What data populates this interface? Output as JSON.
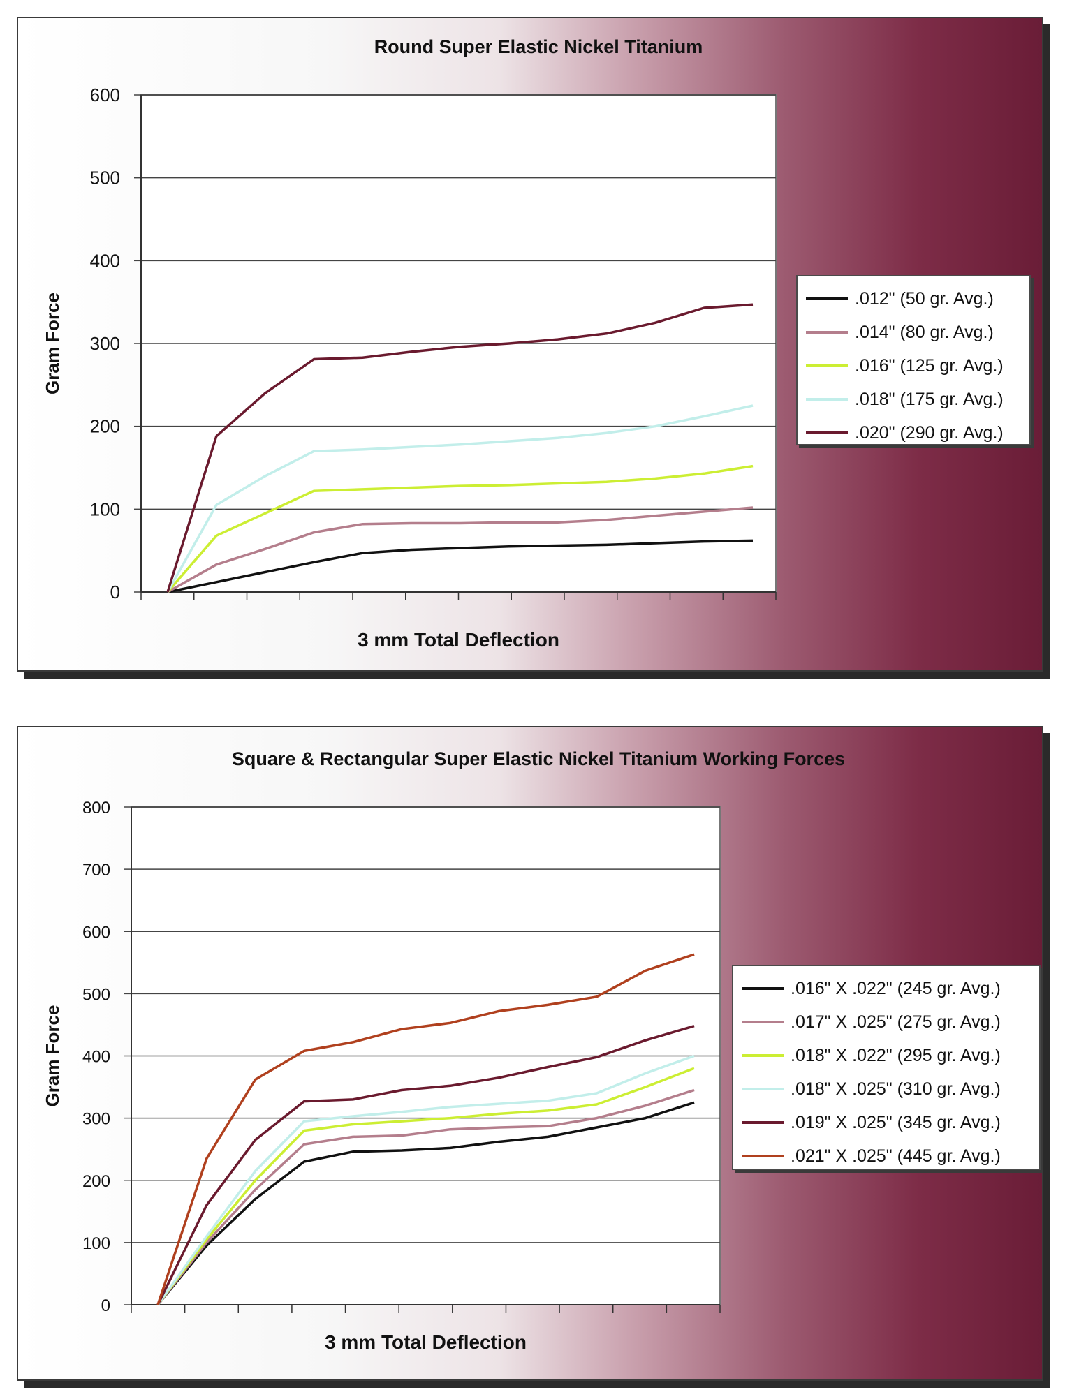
{
  "chart_data": [
    {
      "type": "line",
      "title": "Round Super Elastic Nickel Titanium",
      "xlabel": "3 mm Total Deflection",
      "ylabel": "Gram Force",
      "ylim": [
        0,
        600
      ],
      "y_ticks": [
        0,
        100,
        200,
        300,
        400,
        500,
        600
      ],
      "x_points": 13,
      "x_ticks": 13,
      "legend_position": "right",
      "grid": true,
      "series": [
        {
          "name": ".012\"  (50 gr. Avg.)",
          "color": "#111111",
          "values": [
            0,
            12,
            24,
            36,
            47,
            51,
            53,
            55,
            56,
            57,
            59,
            61,
            62
          ]
        },
        {
          "name": ".014\"  (80 gr. Avg.)",
          "color": "#b47e8c",
          "values": [
            0,
            33,
            52,
            72,
            82,
            83,
            83,
            84,
            84,
            87,
            92,
            97,
            102
          ]
        },
        {
          "name": ".016\"  (125 gr. Avg.)",
          "color": "#ccee33",
          "values": [
            0,
            68,
            95,
            122,
            124,
            126,
            128,
            129,
            131,
            133,
            137,
            143,
            152
          ]
        },
        {
          "name": ".018\"  (175 gr. Avg.)",
          "color": "#c2eeea",
          "values": [
            0,
            105,
            140,
            170,
            172,
            175,
            178,
            182,
            186,
            192,
            200,
            212,
            225
          ]
        },
        {
          "name": ".020\"  (290 gr. Avg.)",
          "color": "#6a1a2e",
          "values": [
            0,
            188,
            240,
            281,
            283,
            290,
            296,
            300,
            305,
            312,
            325,
            343,
            347
          ]
        }
      ]
    },
    {
      "type": "line",
      "title": "Square & Rectangular Super Elastic Nickel Titanium Working Forces",
      "xlabel": "3 mm Total Deflection",
      "ylabel": "Gram Force",
      "ylim": [
        0,
        800
      ],
      "y_ticks": [
        0,
        100,
        200,
        300,
        400,
        500,
        600,
        700,
        800
      ],
      "x_points": 12,
      "x_ticks": 12,
      "legend_position": "right",
      "grid": true,
      "series": [
        {
          "name": ".016\" X .022\"  (245 gr. Avg.)",
          "color": "#111111",
          "values": [
            0,
            95,
            170,
            230,
            246,
            248,
            252,
            262,
            270,
            285,
            300,
            325
          ]
        },
        {
          "name": ".017\" X .025\"  (275 gr. Avg.)",
          "color": "#b47e8c",
          "values": [
            0,
            100,
            185,
            258,
            270,
            272,
            282,
            285,
            287,
            300,
            320,
            345
          ]
        },
        {
          "name": ".018\" X .022\"  (295 gr. Avg.)",
          "color": "#ccee33",
          "values": [
            0,
            105,
            200,
            280,
            290,
            295,
            300,
            307,
            312,
            322,
            350,
            380
          ]
        },
        {
          "name": ".018\" X .025\"  (310 gr. Avg.)",
          "color": "#c2eeea",
          "values": [
            0,
            110,
            215,
            295,
            303,
            310,
            318,
            323,
            328,
            340,
            372,
            400
          ]
        },
        {
          "name": ".019\" X .025\"  (345 gr. Avg.)",
          "color": "#6a1a2e",
          "values": [
            0,
            160,
            265,
            327,
            330,
            345,
            352,
            365,
            382,
            398,
            425,
            448
          ]
        },
        {
          "name": ".021\" X .025\"  (445 gr. Avg.)",
          "color": "#b0401e",
          "values": [
            0,
            235,
            362,
            408,
            422,
            443,
            453,
            472,
            482,
            495,
            537,
            563
          ]
        }
      ]
    }
  ]
}
